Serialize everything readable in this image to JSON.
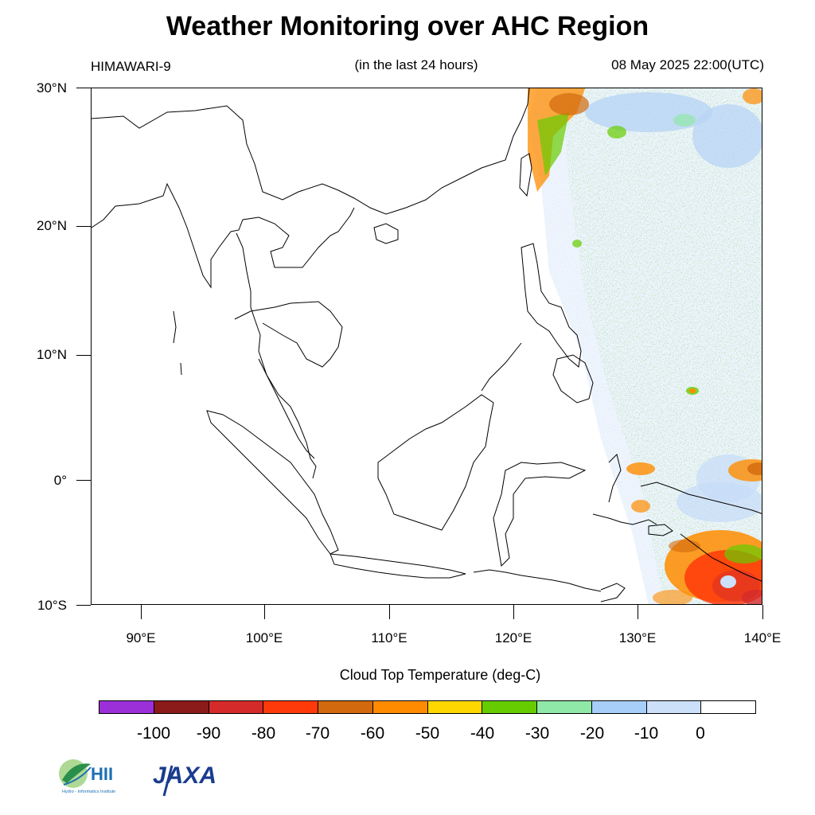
{
  "title": "Weather Monitoring over AHC Region",
  "satellite": "HIMAWARI-9",
  "period": "(in the last 24 hours)",
  "datetime": "08 May 2025 22:00(UTC)",
  "map": {
    "lat_labels": [
      "30°N",
      "20°N",
      "10°N",
      "0°",
      "10°S"
    ],
    "lon_labels": [
      "90°E",
      "100°E",
      "110°E",
      "120°E",
      "130°E",
      "140°E"
    ],
    "lon_range": [
      86,
      140
    ],
    "lat_range": [
      -10,
      30
    ]
  },
  "colorbar": {
    "title": "Cloud Top Temperature (deg-C)",
    "labels": [
      "-100",
      "-90",
      "-80",
      "-70",
      "-60",
      "-50",
      "-40",
      "-30",
      "-20",
      "-10",
      "0"
    ],
    "colors": [
      "#9b30d9",
      "#8b1a1a",
      "#d42a2a",
      "#ff3a0a",
      "#d2690e",
      "#ff8c00",
      "#ffd700",
      "#66cc00",
      "#90e8a8",
      "#a6cef8",
      "#cce0fa",
      "#ffffff"
    ]
  },
  "logos": {
    "hii": "HII",
    "hii_sub": "Hydro - Informatics Institute",
    "jaxa": "JAXA"
  }
}
